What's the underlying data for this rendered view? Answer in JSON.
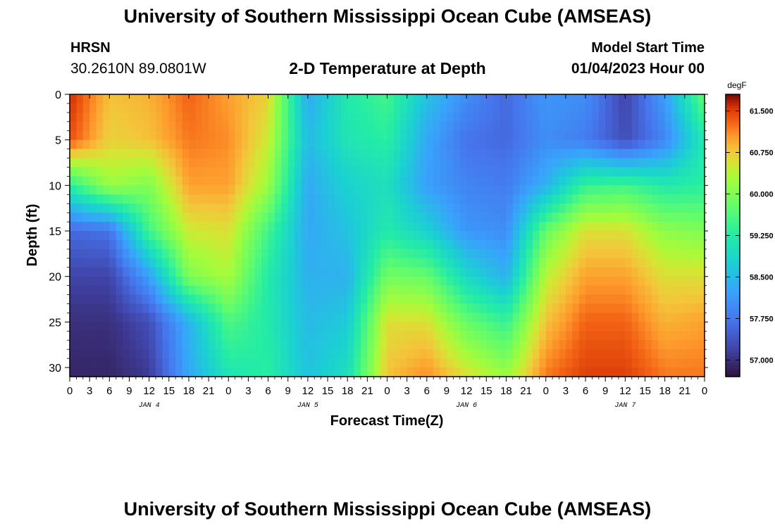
{
  "header": {
    "title": "University of Southern Mississippi Ocean Cube (AMSEAS)",
    "station": "HRSN",
    "coords": "30.2610N  89.0801W",
    "subtitle": "2-D Temperature at Depth",
    "start_label": "Model Start Time",
    "start_value": "01/04/2023 Hour 00"
  },
  "footer": {
    "title": "University of Southern Mississippi Ocean Cube (AMSEAS)"
  },
  "chart_data": {
    "type": "heatmap",
    "title": "2-D Temperature at Depth",
    "xlabel": "Forecast Time(Z)",
    "ylabel": "Depth (ft)",
    "x_hours": [
      0,
      96
    ],
    "xlim": [
      0,
      96
    ],
    "ylim": [
      0,
      31
    ],
    "x_tick_labels": [
      "0",
      "3",
      "6",
      "9",
      "12",
      "15",
      "18",
      "21",
      "0",
      "3",
      "6",
      "9",
      "12",
      "15",
      "18",
      "21",
      "0",
      "3",
      "6",
      "9",
      "12",
      "15",
      "18",
      "21",
      "0",
      "3",
      "6",
      "9",
      "12",
      "15",
      "18",
      "21",
      "0"
    ],
    "date_labels": [
      {
        "label": "JAN 4",
        "hour": 12
      },
      {
        "label": "JAN 5",
        "hour": 36
      },
      {
        "label": "JAN 6",
        "hour": 60
      },
      {
        "label": "JAN 7",
        "hour": 84
      }
    ],
    "y_ticks": [
      0,
      5,
      10,
      15,
      20,
      25,
      30
    ],
    "colorbar": {
      "units": "degF",
      "min": 56.7,
      "max": 61.8,
      "ticks": [
        "61.500",
        "60.750",
        "60.000",
        "59.250",
        "58.500",
        "57.750",
        "57.000"
      ]
    },
    "depths_ft": [
      0,
      5,
      10,
      15,
      20,
      25,
      31
    ],
    "time_hours": [
      0,
      6,
      12,
      18,
      24,
      30,
      36,
      42,
      48,
      54,
      60,
      66,
      72,
      78,
      84,
      90,
      96
    ],
    "temperature_degF": [
      [
        61.6,
        60.8,
        60.9,
        61.3,
        61.0,
        60.7,
        58.3,
        59.2,
        59.5,
        58.6,
        58.0,
        57.6,
        58.1,
        58.0,
        57.2,
        58.2,
        59.8
      ],
      [
        61.4,
        60.7,
        60.8,
        61.2,
        61.1,
        60.5,
        58.5,
        59.1,
        59.3,
        58.3,
        57.7,
        57.6,
        58.0,
        57.8,
        57.3,
        57.9,
        59.2
      ],
      [
        59.3,
        60.2,
        60.0,
        61.0,
        61.0,
        60.2,
        58.3,
        58.8,
        59.0,
        58.2,
        57.9,
        57.8,
        58.4,
        59.4,
        59.5,
        59.2,
        59.3
      ],
      [
        57.6,
        57.7,
        59.5,
        60.5,
        60.6,
        59.5,
        58.3,
        58.6,
        59.2,
        58.8,
        58.1,
        58.0,
        59.8,
        60.6,
        60.6,
        60.1,
        60.0
      ],
      [
        57.2,
        57.2,
        58.2,
        60.0,
        60.3,
        59.2,
        58.4,
        58.4,
        59.9,
        59.8,
        58.9,
        58.4,
        60.4,
        61.0,
        61.0,
        60.6,
        60.6
      ],
      [
        57.0,
        57.0,
        57.3,
        58.4,
        59.6,
        59.2,
        58.5,
        58.7,
        60.6,
        60.6,
        59.8,
        59.4,
        60.8,
        61.3,
        61.3,
        60.9,
        61.0
      ],
      [
        56.9,
        56.9,
        57.1,
        58.3,
        59.1,
        59.3,
        58.6,
        59.0,
        60.8,
        61.1,
        60.6,
        60.2,
        61.2,
        61.5,
        61.5,
        61.2,
        61.2
      ]
    ]
  }
}
